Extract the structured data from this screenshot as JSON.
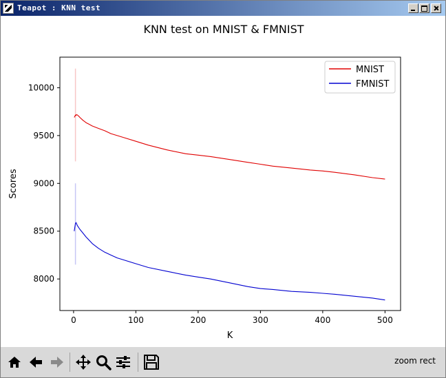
{
  "window": {
    "title": "Teapot : KNN test"
  },
  "toolbar": {
    "buttons": [
      {
        "name": "home-icon",
        "label": "Home"
      },
      {
        "name": "back-icon",
        "label": "Back"
      },
      {
        "name": "forward-icon",
        "label": "Forward"
      },
      {
        "name": "pan-icon",
        "label": "Pan"
      },
      {
        "name": "zoom-icon",
        "label": "Zoom"
      },
      {
        "name": "configure-subplots-icon",
        "label": "Subplots"
      },
      {
        "name": "save-icon",
        "label": "Save"
      }
    ],
    "message": "zoom rect"
  },
  "chart_data": {
    "type": "line",
    "title": "KNN test on MNIST & FMNIST",
    "xlabel": "K",
    "ylabel": "Scores",
    "xlim": [
      -22,
      525
    ],
    "ylim": [
      7670,
      10320
    ],
    "xticks": [
      0,
      100,
      200,
      300,
      400,
      500
    ],
    "yticks": [
      8000,
      8500,
      9000,
      9500,
      10000
    ],
    "grid": false,
    "legend_position": "upper right",
    "colors": {
      "MNIST": "#e00000",
      "FMNIST": "#0000d0"
    },
    "series": [
      {
        "name": "MNIST",
        "color": "#e00000",
        "x": [
          1,
          2,
          3,
          4,
          5,
          6,
          8,
          10,
          15,
          20,
          30,
          40,
          50,
          60,
          70,
          80,
          100,
          120,
          150,
          180,
          200,
          220,
          250,
          280,
          300,
          320,
          350,
          380,
          400,
          420,
          450,
          480,
          500
        ],
        "y": [
          9690,
          9700,
          9715,
          9710,
          9720,
          9715,
          9705,
          9690,
          9660,
          9635,
          9600,
          9575,
          9550,
          9520,
          9500,
          9480,
          9440,
          9400,
          9350,
          9310,
          9295,
          9280,
          9250,
          9220,
          9200,
          9180,
          9160,
          9140,
          9130,
          9115,
          9090,
          9060,
          9045
        ]
      },
      {
        "name": "FMNIST",
        "color": "#0000d0",
        "x": [
          1,
          2,
          3,
          4,
          5,
          6,
          8,
          10,
          15,
          20,
          30,
          40,
          50,
          60,
          70,
          80,
          100,
          120,
          150,
          180,
          200,
          220,
          250,
          280,
          300,
          320,
          350,
          380,
          400,
          420,
          450,
          480,
          500
        ],
        "y": [
          8500,
          8540,
          8580,
          8590,
          8575,
          8560,
          8540,
          8520,
          8480,
          8440,
          8370,
          8320,
          8280,
          8250,
          8220,
          8200,
          8160,
          8120,
          8080,
          8040,
          8020,
          8000,
          7960,
          7920,
          7900,
          7890,
          7870,
          7860,
          7850,
          7840,
          7820,
          7800,
          7780
        ]
      }
    ],
    "error_bars": [
      {
        "series": "MNIST",
        "x": 3,
        "low": 9230,
        "high": 10200
      },
      {
        "series": "FMNIST",
        "x": 3,
        "low": 8150,
        "high": 9000
      }
    ]
  }
}
